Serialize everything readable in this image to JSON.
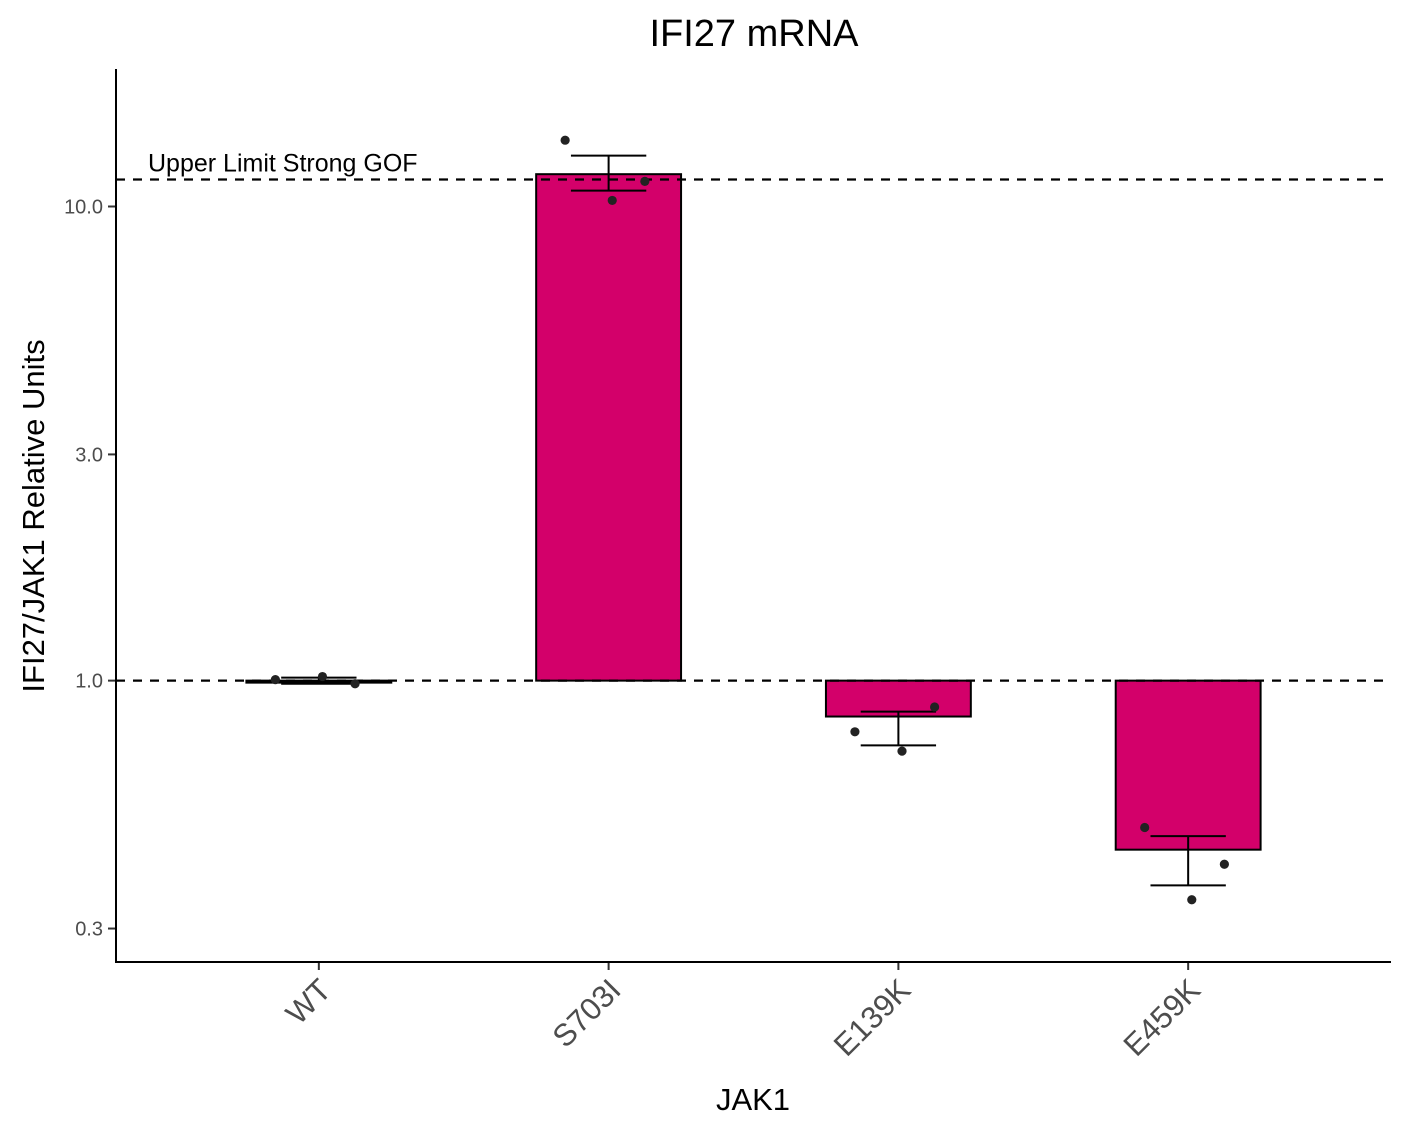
{
  "chart_data": {
    "type": "bar",
    "title": "IFI27 mRNA",
    "xlabel": "JAK1",
    "ylabel": "IFI27/JAK1 Relative Units",
    "yscale": "log10",
    "ylim": [
      0.255,
      19.5
    ],
    "yticks": [
      0.3,
      1.0,
      3.0,
      10.0
    ],
    "ytick_labels": [
      "0.3",
      "1.0",
      "3.0",
      "10.0"
    ],
    "categories": [
      "WT",
      "S703I",
      "E139K",
      "E459K"
    ],
    "values": [
      1.0,
      11.7,
      0.84,
      0.44
    ],
    "error_bars": [
      {
        "low": 0.985,
        "high": 1.015
      },
      {
        "low": 10.8,
        "high": 12.8
      },
      {
        "low": 0.73,
        "high": 0.86
      },
      {
        "low": 0.37,
        "high": 0.47
      }
    ],
    "points": [
      [
        1.005,
        0.985,
        1.02
      ],
      [
        13.8,
        11.3,
        10.3
      ],
      [
        0.78,
        0.88,
        0.71
      ],
      [
        0.49,
        0.41,
        0.345
      ]
    ],
    "reference_lines": [
      {
        "y": 11.4,
        "label": "Upper Limit Strong GOF"
      },
      {
        "y": 1.0,
        "label": ""
      }
    ],
    "bar_color": "#d3006a",
    "bar_edge_color": "#000000",
    "point_color": "#222222",
    "grid": false,
    "legend": "none"
  }
}
